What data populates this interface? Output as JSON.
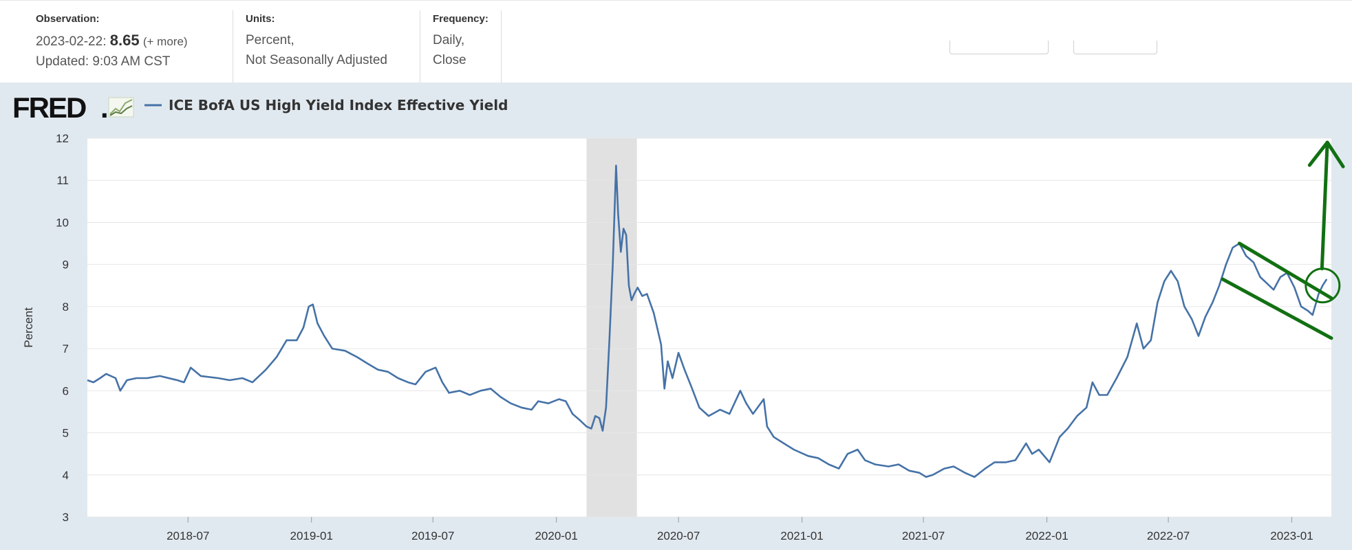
{
  "header": {
    "observation_label": "Observation:",
    "observation_date": "2023-02-22:",
    "observation_value": "8.65",
    "observation_more": "(+ more)",
    "updated": "Updated: 9:03 AM CST",
    "units_label": "Units:",
    "units_line1": "Percent,",
    "units_line2": "Not Seasonally Adjusted",
    "frequency_label": "Frequency:",
    "frequency_line1": "Daily,",
    "frequency_line2": "Close"
  },
  "logo": {
    "text": "FRED",
    "mark": ".",
    "icon": "line-chart-icon"
  },
  "colors": {
    "series": "#4572a7",
    "recession": "#e1e1e1",
    "annotation": "#127012",
    "panel": "#e1e9f0",
    "plot": "#ffffff",
    "grid": "#e6e6e6"
  },
  "chart_data": {
    "type": "line",
    "title": "",
    "legend": "ICE BofA US High Yield Index Effective Yield",
    "legend_placement": "top-left",
    "ylabel": "Percent",
    "xlabel": "",
    "ylim": [
      3,
      12
    ],
    "xlim": [
      "2018-02-01",
      "2023-03-01"
    ],
    "grid": true,
    "y_ticks": [
      3,
      4,
      5,
      6,
      7,
      8,
      9,
      10,
      11,
      12
    ],
    "x_ticks": [
      "2018-07",
      "2019-01",
      "2019-07",
      "2020-01",
      "2020-07",
      "2021-01",
      "2021-07",
      "2022-01",
      "2022-07",
      "2023-01"
    ],
    "recession": {
      "start": "2020-02-15",
      "end": "2020-04-30"
    },
    "series": [
      {
        "name": "ICE BofA US High Yield Index Effective Yield",
        "points": [
          [
            "2018-02-01",
            6.25
          ],
          [
            "2018-02-10",
            6.2
          ],
          [
            "2018-02-20",
            6.3
          ],
          [
            "2018-03-01",
            6.4
          ],
          [
            "2018-03-15",
            6.3
          ],
          [
            "2018-03-22",
            6.0
          ],
          [
            "2018-04-01",
            6.25
          ],
          [
            "2018-04-15",
            6.3
          ],
          [
            "2018-05-01",
            6.3
          ],
          [
            "2018-05-20",
            6.35
          ],
          [
            "2018-06-15",
            6.25
          ],
          [
            "2018-06-25",
            6.2
          ],
          [
            "2018-07-05",
            6.55
          ],
          [
            "2018-07-20",
            6.35
          ],
          [
            "2018-08-15",
            6.3
          ],
          [
            "2018-09-01",
            6.25
          ],
          [
            "2018-09-20",
            6.3
          ],
          [
            "2018-10-05",
            6.2
          ],
          [
            "2018-10-25",
            6.5
          ],
          [
            "2018-11-10",
            6.8
          ],
          [
            "2018-11-25",
            7.2
          ],
          [
            "2018-12-10",
            7.2
          ],
          [
            "2018-12-20",
            7.5
          ],
          [
            "2018-12-28",
            8.0
          ],
          [
            "2019-01-03",
            8.05
          ],
          [
            "2019-01-10",
            7.6
          ],
          [
            "2019-01-20",
            7.3
          ],
          [
            "2019-02-01",
            7.0
          ],
          [
            "2019-02-20",
            6.95
          ],
          [
            "2019-03-10",
            6.8
          ],
          [
            "2019-03-25",
            6.65
          ],
          [
            "2019-04-10",
            6.5
          ],
          [
            "2019-04-25",
            6.45
          ],
          [
            "2019-05-10",
            6.3
          ],
          [
            "2019-05-25",
            6.2
          ],
          [
            "2019-06-05",
            6.15
          ],
          [
            "2019-06-20",
            6.45
          ],
          [
            "2019-07-05",
            6.55
          ],
          [
            "2019-07-15",
            6.2
          ],
          [
            "2019-07-25",
            5.95
          ],
          [
            "2019-08-10",
            6.0
          ],
          [
            "2019-08-25",
            5.9
          ],
          [
            "2019-09-10",
            6.0
          ],
          [
            "2019-09-25",
            6.05
          ],
          [
            "2019-10-10",
            5.85
          ],
          [
            "2019-10-25",
            5.7
          ],
          [
            "2019-11-10",
            5.6
          ],
          [
            "2019-11-25",
            5.55
          ],
          [
            "2019-12-05",
            5.75
          ],
          [
            "2019-12-20",
            5.7
          ],
          [
            "2020-01-05",
            5.8
          ],
          [
            "2020-01-15",
            5.75
          ],
          [
            "2020-01-25",
            5.45
          ],
          [
            "2020-02-05",
            5.3
          ],
          [
            "2020-02-15",
            5.15
          ],
          [
            "2020-02-22",
            5.1
          ],
          [
            "2020-02-28",
            5.4
          ],
          [
            "2020-03-05",
            5.35
          ],
          [
            "2020-03-10",
            5.05
          ],
          [
            "2020-03-15",
            5.6
          ],
          [
            "2020-03-20",
            7.2
          ],
          [
            "2020-03-25",
            9.0
          ],
          [
            "2020-03-30",
            11.35
          ],
          [
            "2020-04-02",
            10.2
          ],
          [
            "2020-04-06",
            9.3
          ],
          [
            "2020-04-10",
            9.85
          ],
          [
            "2020-04-14",
            9.7
          ],
          [
            "2020-04-18",
            8.5
          ],
          [
            "2020-04-22",
            8.15
          ],
          [
            "2020-04-26",
            8.3
          ],
          [
            "2020-05-01",
            8.45
          ],
          [
            "2020-05-08",
            8.25
          ],
          [
            "2020-05-15",
            8.3
          ],
          [
            "2020-05-25",
            7.85
          ],
          [
            "2020-06-05",
            7.1
          ],
          [
            "2020-06-10",
            6.05
          ],
          [
            "2020-06-15",
            6.7
          ],
          [
            "2020-06-22",
            6.3
          ],
          [
            "2020-07-01",
            6.9
          ],
          [
            "2020-07-10",
            6.5
          ],
          [
            "2020-07-20",
            6.1
          ],
          [
            "2020-08-01",
            5.6
          ],
          [
            "2020-08-15",
            5.4
          ],
          [
            "2020-09-01",
            5.55
          ],
          [
            "2020-09-15",
            5.45
          ],
          [
            "2020-10-01",
            6.0
          ],
          [
            "2020-10-10",
            5.7
          ],
          [
            "2020-10-20",
            5.45
          ],
          [
            "2020-11-05",
            5.8
          ],
          [
            "2020-11-10",
            5.15
          ],
          [
            "2020-11-20",
            4.9
          ],
          [
            "2020-12-05",
            4.75
          ],
          [
            "2020-12-20",
            4.6
          ],
          [
            "2021-01-10",
            4.45
          ],
          [
            "2021-01-25",
            4.4
          ],
          [
            "2021-02-10",
            4.25
          ],
          [
            "2021-02-25",
            4.15
          ],
          [
            "2021-03-10",
            4.5
          ],
          [
            "2021-03-25",
            4.6
          ],
          [
            "2021-04-05",
            4.35
          ],
          [
            "2021-04-20",
            4.25
          ],
          [
            "2021-05-10",
            4.2
          ],
          [
            "2021-05-25",
            4.25
          ],
          [
            "2021-06-10",
            4.1
          ],
          [
            "2021-06-25",
            4.05
          ],
          [
            "2021-07-05",
            3.95
          ],
          [
            "2021-07-15",
            4.0
          ],
          [
            "2021-08-01",
            4.15
          ],
          [
            "2021-08-15",
            4.2
          ],
          [
            "2021-09-01",
            4.05
          ],
          [
            "2021-09-15",
            3.95
          ],
          [
            "2021-10-01",
            4.15
          ],
          [
            "2021-10-15",
            4.3
          ],
          [
            "2021-11-01",
            4.3
          ],
          [
            "2021-11-15",
            4.35
          ],
          [
            "2021-12-01",
            4.75
          ],
          [
            "2021-12-10",
            4.5
          ],
          [
            "2021-12-20",
            4.6
          ],
          [
            "2022-01-05",
            4.3
          ],
          [
            "2022-01-20",
            4.9
          ],
          [
            "2022-02-01",
            5.1
          ],
          [
            "2022-02-15",
            5.4
          ],
          [
            "2022-03-01",
            5.6
          ],
          [
            "2022-03-10",
            6.2
          ],
          [
            "2022-03-20",
            5.9
          ],
          [
            "2022-04-01",
            5.9
          ],
          [
            "2022-04-15",
            6.3
          ],
          [
            "2022-05-01",
            6.8
          ],
          [
            "2022-05-15",
            7.6
          ],
          [
            "2022-05-25",
            7.0
          ],
          [
            "2022-06-05",
            7.2
          ],
          [
            "2022-06-15",
            8.1
          ],
          [
            "2022-06-25",
            8.6
          ],
          [
            "2022-07-05",
            8.85
          ],
          [
            "2022-07-15",
            8.6
          ],
          [
            "2022-07-25",
            8.0
          ],
          [
            "2022-08-05",
            7.7
          ],
          [
            "2022-08-15",
            7.3
          ],
          [
            "2022-08-25",
            7.75
          ],
          [
            "2022-09-05",
            8.1
          ],
          [
            "2022-09-15",
            8.5
          ],
          [
            "2022-09-25",
            9.0
          ],
          [
            "2022-10-05",
            9.4
          ],
          [
            "2022-10-15",
            9.5
          ],
          [
            "2022-10-25",
            9.2
          ],
          [
            "2022-11-05",
            9.05
          ],
          [
            "2022-11-15",
            8.7
          ],
          [
            "2022-11-25",
            8.55
          ],
          [
            "2022-12-05",
            8.4
          ],
          [
            "2022-12-15",
            8.7
          ],
          [
            "2022-12-25",
            8.8
          ],
          [
            "2023-01-05",
            8.45
          ],
          [
            "2023-01-15",
            8.0
          ],
          [
            "2023-01-25",
            7.9
          ],
          [
            "2023-02-01",
            7.8
          ],
          [
            "2023-02-10",
            8.3
          ],
          [
            "2023-02-16",
            8.5
          ],
          [
            "2023-02-22",
            8.65
          ]
        ]
      }
    ]
  },
  "annotations": {
    "channel_upper": [
      [
        "2022-10-15",
        9.5
      ],
      [
        "2023-03-01",
        8.2
      ]
    ],
    "channel_lower": [
      [
        "2022-09-20",
        8.65
      ],
      [
        "2023-03-01",
        7.25
      ]
    ],
    "arrow_from": [
      "2023-02-15",
      8.9
    ],
    "arrow_to": [
      "2023-02-23",
      11.9
    ],
    "circle_center": [
      "2023-02-16",
      8.5
    ],
    "circle_radius_pct": 0.4
  }
}
